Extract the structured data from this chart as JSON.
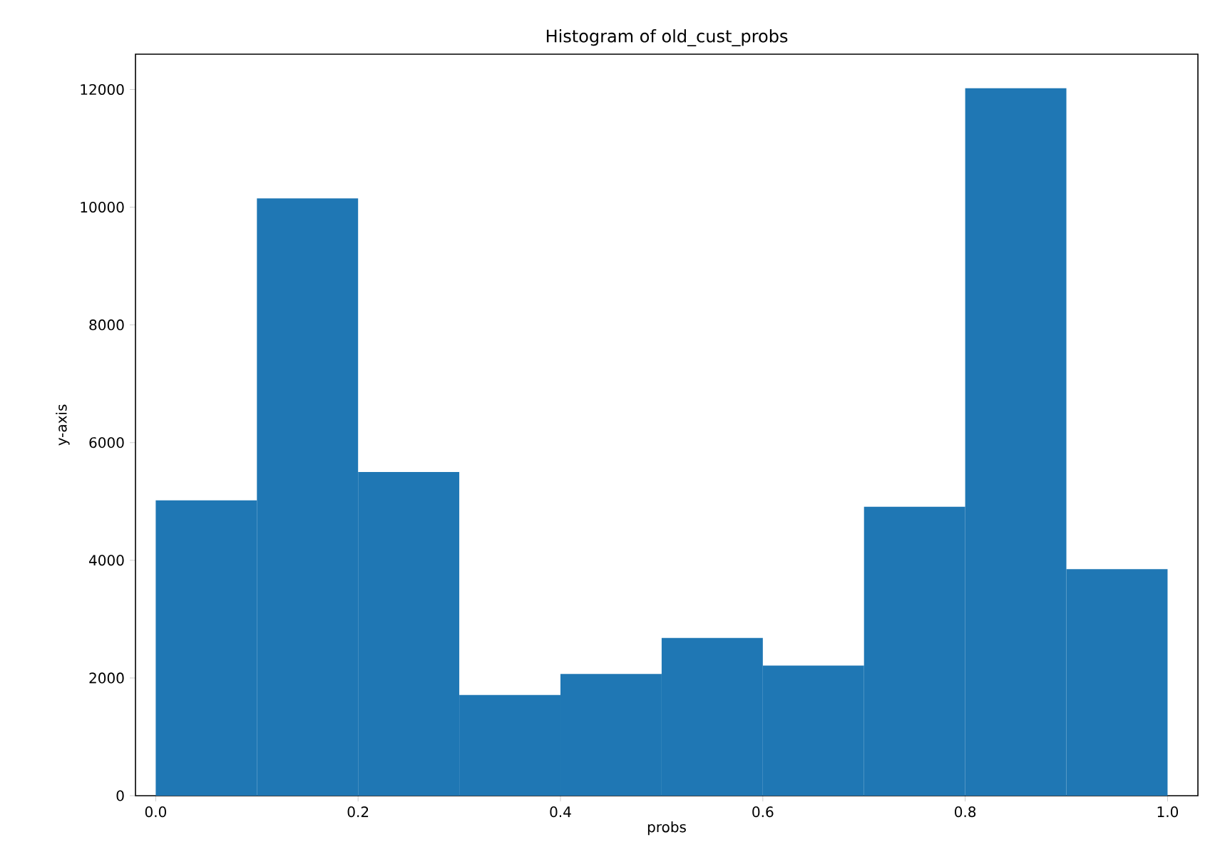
{
  "chart_data": {
    "type": "histogram",
    "title": "Histogram of old_cust_probs",
    "xlabel": "probs",
    "ylabel": "y-axis",
    "bins": [
      0.0,
      0.1,
      0.2,
      0.3,
      0.4,
      0.5,
      0.6,
      0.7,
      0.8,
      0.9,
      1.0
    ],
    "values": [
      5020,
      10150,
      5500,
      1710,
      2070,
      2680,
      2210,
      4910,
      12020,
      3850
    ],
    "color": "#1f77b4",
    "xlim": [
      -0.02,
      1.03
    ],
    "ylim": [
      0,
      12600
    ],
    "xticks": [
      {
        "value": 0.0,
        "label": "0.0"
      },
      {
        "value": 0.2,
        "label": "0.2"
      },
      {
        "value": 0.4,
        "label": "0.4"
      },
      {
        "value": 0.6,
        "label": "0.6"
      },
      {
        "value": 0.8,
        "label": "0.8"
      },
      {
        "value": 1.0,
        "label": "1.0"
      }
    ],
    "yticks": [
      0,
      2000,
      4000,
      6000,
      8000,
      10000,
      12000
    ]
  }
}
